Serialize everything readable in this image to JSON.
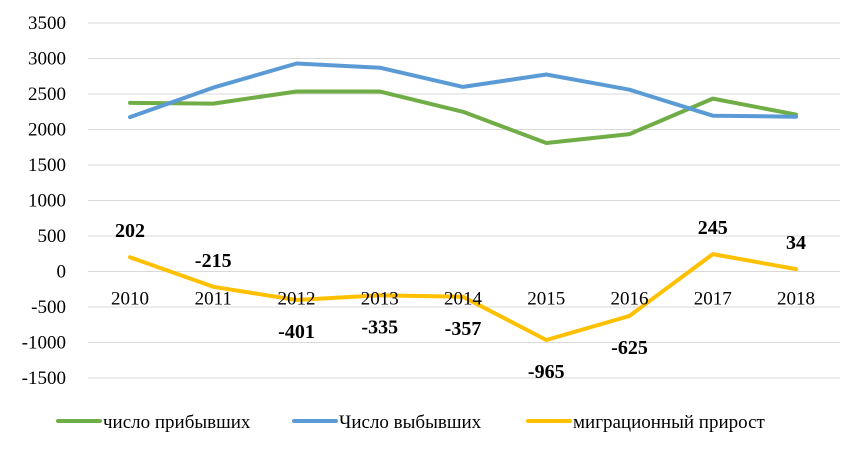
{
  "chart_data": {
    "type": "line",
    "title": "",
    "xlabel": "",
    "ylabel": "",
    "categories": [
      "2010",
      "2011",
      "2012",
      "2013",
      "2014",
      "2015",
      "2016",
      "2017",
      "2018"
    ],
    "ylim": [
      -1500,
      3500
    ],
    "ytick_step": 500,
    "yticks": [
      "-1500",
      "-1000",
      "-500",
      "0",
      "500",
      "1000",
      "1500",
      "2000",
      "2500",
      "3000",
      "3500"
    ],
    "grid": true,
    "legend_position": "bottom",
    "series": [
      {
        "name": "число прибывших",
        "color": "#70ad47",
        "values": [
          2375,
          2365,
          2535,
          2535,
          2250,
          1810,
          1935,
          2435,
          2210
        ]
      },
      {
        "name": "Число выбывших",
        "color": "#5b9bd5",
        "values": [
          2175,
          2590,
          2930,
          2870,
          2600,
          2775,
          2560,
          2195,
          2180
        ]
      },
      {
        "name": "миграционный прирост",
        "color": "#ffc000",
        "values": [
          202,
          -215,
          -401,
          -335,
          -357,
          -965,
          -625,
          245,
          34
        ],
        "data_labels": [
          "202",
          "-215",
          "-401",
          "-335",
          "-357",
          "-965",
          "-625",
          "245",
          "34"
        ]
      }
    ]
  }
}
